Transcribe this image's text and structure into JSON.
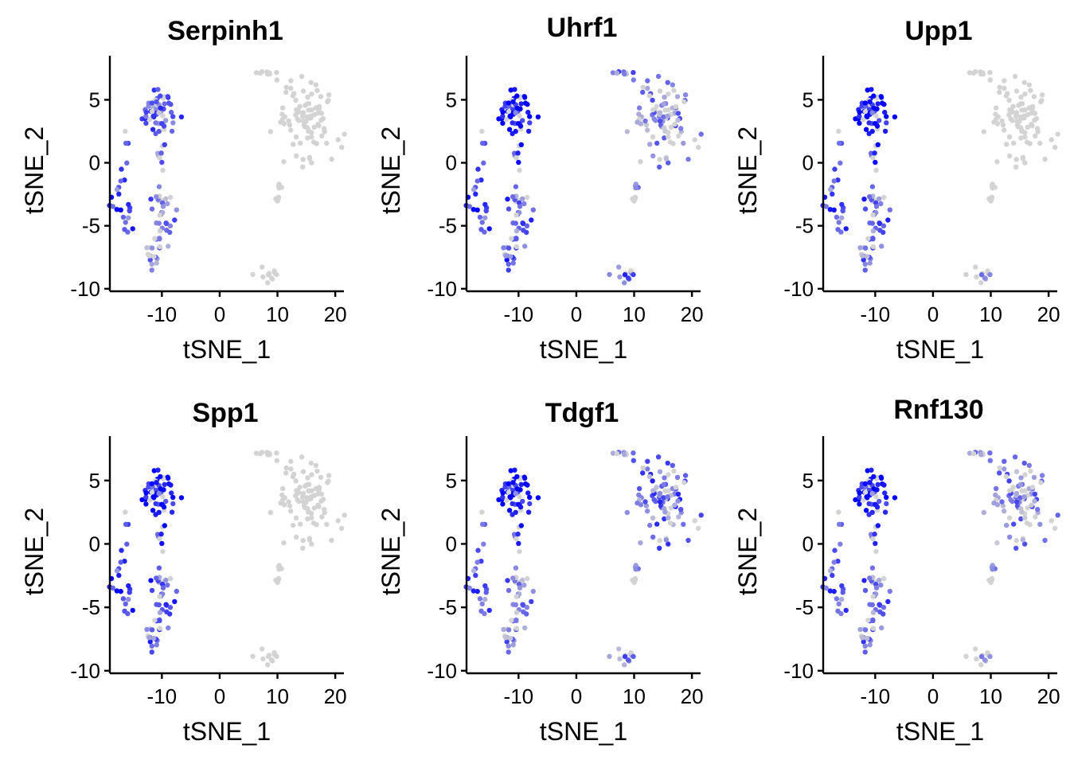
{
  "chart_data": [
    {
      "type": "scatter",
      "title": "Serpinh1",
      "xlabel": "tSNE_1",
      "ylabel": "tSNE_2",
      "xlim": [
        -19,
        21.5
      ],
      "ylim": [
        -10.2,
        8.5
      ],
      "xticks": [
        -10,
        0,
        10,
        20
      ],
      "xtick_labels": [
        "-10",
        "0",
        "10",
        "20"
      ],
      "yticks": [
        -10,
        -5,
        0,
        5
      ],
      "ytick_labels": [
        "-10",
        "-5",
        "0",
        "5"
      ],
      "color_scale": {
        "low": "#d3d3d3",
        "high": "#0000ff"
      },
      "cluster_expression": {
        "A": 0.45,
        "B": 0.35,
        "C": 0.55,
        "D": 0.3,
        "E": 0.2,
        "F": 0.0,
        "G": 0.0,
        "H": 0.0,
        "I": 0.0
      }
    },
    {
      "type": "scatter",
      "title": "Uhrf1",
      "xlabel": "tSNE_1",
      "ylabel": "tSNE_2",
      "xlim": [
        -19,
        21.5
      ],
      "ylim": [
        -10.2,
        8.5
      ],
      "xticks": [
        -10,
        0,
        10,
        20
      ],
      "xtick_labels": [
        "-10",
        "0",
        "10",
        "20"
      ],
      "yticks": [
        -10,
        -5,
        0,
        5
      ],
      "ytick_labels": [
        "-10",
        "-5",
        "0",
        "5"
      ],
      "color_scale": {
        "low": "#d3d3d3",
        "high": "#0000ff"
      },
      "cluster_expression": {
        "A": 0.8,
        "B": 0.65,
        "C": 0.55,
        "D": 0.45,
        "E": 0.5,
        "F": 0.2,
        "G": 0.3,
        "H": 0.05,
        "I": 0.5
      }
    },
    {
      "type": "scatter",
      "title": "Upp1",
      "xlabel": "tSNE_1",
      "ylabel": "tSNE_2",
      "xlim": [
        -19,
        21.5
      ],
      "ylim": [
        -10.2,
        8.5
      ],
      "xticks": [
        -10,
        0,
        10,
        20
      ],
      "xtick_labels": [
        "-10",
        "0",
        "10",
        "20"
      ],
      "yticks": [
        -10,
        -5,
        0,
        5
      ],
      "ytick_labels": [
        "-10",
        "-5",
        "0",
        "5"
      ],
      "color_scale": {
        "low": "#d3d3d3",
        "high": "#0000ff"
      },
      "cluster_expression": {
        "A": 0.8,
        "B": 0.65,
        "C": 0.5,
        "D": 0.45,
        "E": 0.35,
        "F": 0.0,
        "G": 0.0,
        "H": 0.0,
        "I": 0.15
      }
    },
    {
      "type": "scatter",
      "title": "Spp1",
      "xlabel": "tSNE_1",
      "ylabel": "tSNE_2",
      "xlim": [
        -19,
        21.5
      ],
      "ylim": [
        -10.2,
        8.5
      ],
      "xticks": [
        -10,
        0,
        10,
        20
      ],
      "xtick_labels": [
        "-10",
        "0",
        "10",
        "20"
      ],
      "yticks": [
        -10,
        -5,
        0,
        5
      ],
      "ytick_labels": [
        "-10",
        "-5",
        "0",
        "5"
      ],
      "color_scale": {
        "low": "#d3d3d3",
        "high": "#0000ff"
      },
      "cluster_expression": {
        "A": 0.75,
        "B": 0.65,
        "C": 0.6,
        "D": 0.5,
        "E": 0.45,
        "F": 0.0,
        "G": 0.0,
        "H": 0.0,
        "I": 0.0
      }
    },
    {
      "type": "scatter",
      "title": "Tdgf1",
      "xlabel": "tSNE_1",
      "ylabel": "tSNE_2",
      "xlim": [
        -19,
        21.5
      ],
      "ylim": [
        -10.2,
        8.5
      ],
      "xticks": [
        -10,
        0,
        10,
        20
      ],
      "xtick_labels": [
        "-10",
        "0",
        "10",
        "20"
      ],
      "yticks": [
        -10,
        -5,
        0,
        5
      ],
      "ytick_labels": [
        "-10",
        "-5",
        "0",
        "5"
      ],
      "color_scale": {
        "low": "#d3d3d3",
        "high": "#0000ff"
      },
      "cluster_expression": {
        "A": 0.8,
        "B": 0.6,
        "C": 0.45,
        "D": 0.3,
        "E": 0.3,
        "F": 0.4,
        "G": 0.1,
        "H": 0.05,
        "I": 0.35
      }
    },
    {
      "type": "scatter",
      "title": "Rnf130",
      "xlabel": "tSNE_1",
      "ylabel": "tSNE_2",
      "xlim": [
        -19,
        21.5
      ],
      "ylim": [
        -10.2,
        8.5
      ],
      "xticks": [
        -10,
        0,
        10,
        20
      ],
      "xtick_labels": [
        "-10",
        "0",
        "10",
        "20"
      ],
      "yticks": [
        -10,
        -5,
        0,
        5
      ],
      "ytick_labels": [
        "-10",
        "-5",
        "0",
        "5"
      ],
      "color_scale": {
        "low": "#d3d3d3",
        "high": "#0000ff"
      },
      "cluster_expression": {
        "A": 0.75,
        "B": 0.55,
        "C": 0.45,
        "D": 0.4,
        "E": 0.35,
        "F": 0.25,
        "G": 0.1,
        "H": 0.05,
        "I": 0.1
      }
    }
  ],
  "clusters": [
    {
      "id": "A",
      "cx": -10.5,
      "cy": 4.3,
      "sx": 1.4,
      "sy": 0.9,
      "n": 50
    },
    {
      "id": "B",
      "cx": -10.2,
      "cy": 1.8,
      "sx": 0.4,
      "sy": 1.6,
      "n": 14
    },
    {
      "id": "C",
      "cx": -16.8,
      "cy": -3.0,
      "sx": 1.1,
      "sy": 1.9,
      "n": 24
    },
    {
      "id": "D",
      "cx": -10.0,
      "cy": -4.0,
      "sx": 1.1,
      "sy": 1.7,
      "n": 34
    },
    {
      "id": "E",
      "cx": -11.5,
      "cy": -7.3,
      "sx": 0.8,
      "sy": 0.6,
      "n": 14
    },
    {
      "id": "F",
      "cx": 15.0,
      "cy": 3.8,
      "sx": 2.5,
      "sy": 1.6,
      "n": 90
    },
    {
      "id": "G",
      "cx": 7.8,
      "cy": 7.2,
      "sx": 0.8,
      "sy": 0.15,
      "n": 8
    },
    {
      "id": "H",
      "cx": 10.2,
      "cy": -3.0,
      "sx": 0.3,
      "sy": 0.5,
      "n": 9
    },
    {
      "id": "I",
      "cx": 9.2,
      "cy": -8.6,
      "sx": 1.2,
      "sy": 0.4,
      "n": 12
    }
  ]
}
